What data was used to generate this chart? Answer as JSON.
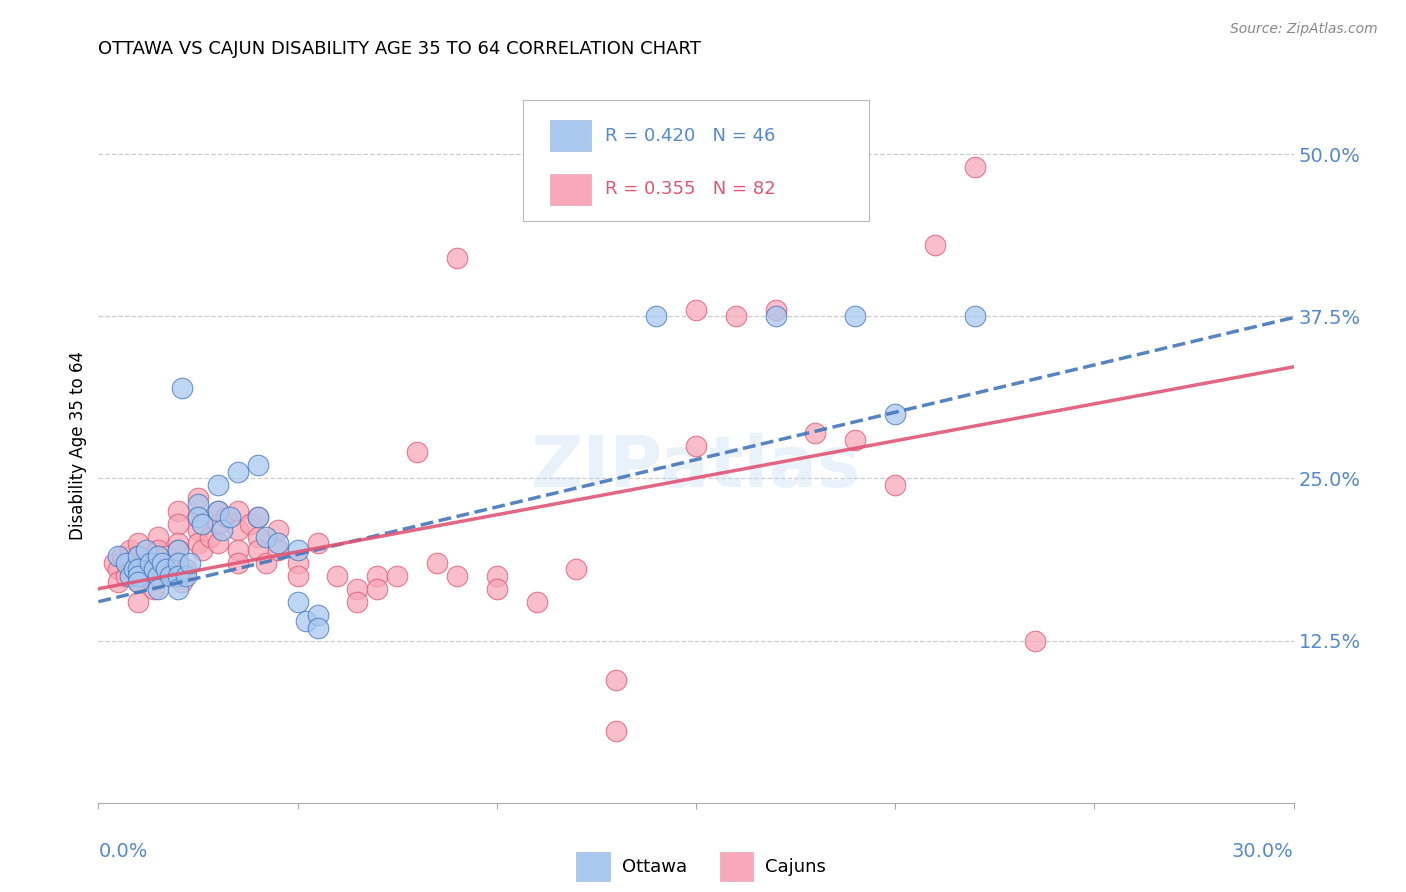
{
  "title": "OTTAWA VS CAJUN DISABILITY AGE 35 TO 64 CORRELATION CHART",
  "source": "Source: ZipAtlas.com",
  "ylabel": "Disability Age 35 to 64",
  "yticks": [
    0.125,
    0.25,
    0.375,
    0.5
  ],
  "ytick_labels": [
    "12.5%",
    "25.0%",
    "37.5%",
    "50.0%"
  ],
  "xlim": [
    0.0,
    0.3
  ],
  "ylim": [
    0.0,
    0.55
  ],
  "ottawa_R": 0.42,
  "ottawa_N": 46,
  "cajun_R": 0.355,
  "cajun_N": 82,
  "ottawa_color": "#a8c8f0",
  "cajun_color": "#f8a8b8",
  "ottawa_line_color": "#4477bb",
  "cajun_line_color": "#e05575",
  "tick_label_color": "#5588cc",
  "watermark": "ZIPatlas",
  "ottawa_scatter": [
    [
      0.005,
      0.19
    ],
    [
      0.007,
      0.185
    ],
    [
      0.008,
      0.175
    ],
    [
      0.009,
      0.18
    ],
    [
      0.01,
      0.19
    ],
    [
      0.01,
      0.18
    ],
    [
      0.01,
      0.175
    ],
    [
      0.01,
      0.17
    ],
    [
      0.012,
      0.195
    ],
    [
      0.013,
      0.185
    ],
    [
      0.014,
      0.18
    ],
    [
      0.015,
      0.19
    ],
    [
      0.015,
      0.175
    ],
    [
      0.015,
      0.165
    ],
    [
      0.016,
      0.185
    ],
    [
      0.017,
      0.18
    ],
    [
      0.018,
      0.175
    ],
    [
      0.02,
      0.195
    ],
    [
      0.02,
      0.185
    ],
    [
      0.02,
      0.175
    ],
    [
      0.02,
      0.165
    ],
    [
      0.021,
      0.32
    ],
    [
      0.022,
      0.175
    ],
    [
      0.023,
      0.185
    ],
    [
      0.025,
      0.23
    ],
    [
      0.025,
      0.22
    ],
    [
      0.026,
      0.215
    ],
    [
      0.03,
      0.245
    ],
    [
      0.03,
      0.225
    ],
    [
      0.031,
      0.21
    ],
    [
      0.033,
      0.22
    ],
    [
      0.035,
      0.255
    ],
    [
      0.04,
      0.26
    ],
    [
      0.04,
      0.22
    ],
    [
      0.042,
      0.205
    ],
    [
      0.045,
      0.2
    ],
    [
      0.05,
      0.195
    ],
    [
      0.05,
      0.155
    ],
    [
      0.052,
      0.14
    ],
    [
      0.055,
      0.145
    ],
    [
      0.055,
      0.135
    ],
    [
      0.14,
      0.375
    ],
    [
      0.17,
      0.375
    ],
    [
      0.19,
      0.375
    ],
    [
      0.2,
      0.3
    ],
    [
      0.22,
      0.375
    ]
  ],
  "cajun_scatter": [
    [
      0.004,
      0.185
    ],
    [
      0.005,
      0.18
    ],
    [
      0.005,
      0.17
    ],
    [
      0.006,
      0.19
    ],
    [
      0.007,
      0.175
    ],
    [
      0.008,
      0.195
    ],
    [
      0.008,
      0.185
    ],
    [
      0.009,
      0.18
    ],
    [
      0.01,
      0.2
    ],
    [
      0.01,
      0.19
    ],
    [
      0.01,
      0.18
    ],
    [
      0.01,
      0.17
    ],
    [
      0.01,
      0.155
    ],
    [
      0.011,
      0.175
    ],
    [
      0.012,
      0.185
    ],
    [
      0.013,
      0.175
    ],
    [
      0.014,
      0.165
    ],
    [
      0.015,
      0.205
    ],
    [
      0.015,
      0.195
    ],
    [
      0.015,
      0.185
    ],
    [
      0.015,
      0.175
    ],
    [
      0.016,
      0.18
    ],
    [
      0.017,
      0.19
    ],
    [
      0.018,
      0.175
    ],
    [
      0.02,
      0.225
    ],
    [
      0.02,
      0.215
    ],
    [
      0.02,
      0.2
    ],
    [
      0.02,
      0.195
    ],
    [
      0.02,
      0.185
    ],
    [
      0.021,
      0.17
    ],
    [
      0.022,
      0.18
    ],
    [
      0.025,
      0.235
    ],
    [
      0.025,
      0.22
    ],
    [
      0.025,
      0.21
    ],
    [
      0.025,
      0.2
    ],
    [
      0.026,
      0.195
    ],
    [
      0.028,
      0.205
    ],
    [
      0.03,
      0.225
    ],
    [
      0.03,
      0.215
    ],
    [
      0.03,
      0.2
    ],
    [
      0.032,
      0.22
    ],
    [
      0.035,
      0.225
    ],
    [
      0.035,
      0.21
    ],
    [
      0.035,
      0.195
    ],
    [
      0.035,
      0.185
    ],
    [
      0.038,
      0.215
    ],
    [
      0.04,
      0.22
    ],
    [
      0.04,
      0.205
    ],
    [
      0.04,
      0.195
    ],
    [
      0.042,
      0.185
    ],
    [
      0.045,
      0.21
    ],
    [
      0.045,
      0.195
    ],
    [
      0.05,
      0.185
    ],
    [
      0.05,
      0.175
    ],
    [
      0.055,
      0.2
    ],
    [
      0.06,
      0.175
    ],
    [
      0.065,
      0.165
    ],
    [
      0.065,
      0.155
    ],
    [
      0.07,
      0.175
    ],
    [
      0.07,
      0.165
    ],
    [
      0.075,
      0.175
    ],
    [
      0.08,
      0.27
    ],
    [
      0.085,
      0.185
    ],
    [
      0.09,
      0.175
    ],
    [
      0.09,
      0.42
    ],
    [
      0.1,
      0.175
    ],
    [
      0.1,
      0.165
    ],
    [
      0.11,
      0.155
    ],
    [
      0.12,
      0.18
    ],
    [
      0.13,
      0.095
    ],
    [
      0.13,
      0.055
    ],
    [
      0.14,
      0.48
    ],
    [
      0.15,
      0.38
    ],
    [
      0.15,
      0.275
    ],
    [
      0.16,
      0.375
    ],
    [
      0.17,
      0.38
    ],
    [
      0.18,
      0.285
    ],
    [
      0.19,
      0.28
    ],
    [
      0.2,
      0.245
    ],
    [
      0.21,
      0.43
    ],
    [
      0.22,
      0.49
    ],
    [
      0.235,
      0.125
    ]
  ]
}
